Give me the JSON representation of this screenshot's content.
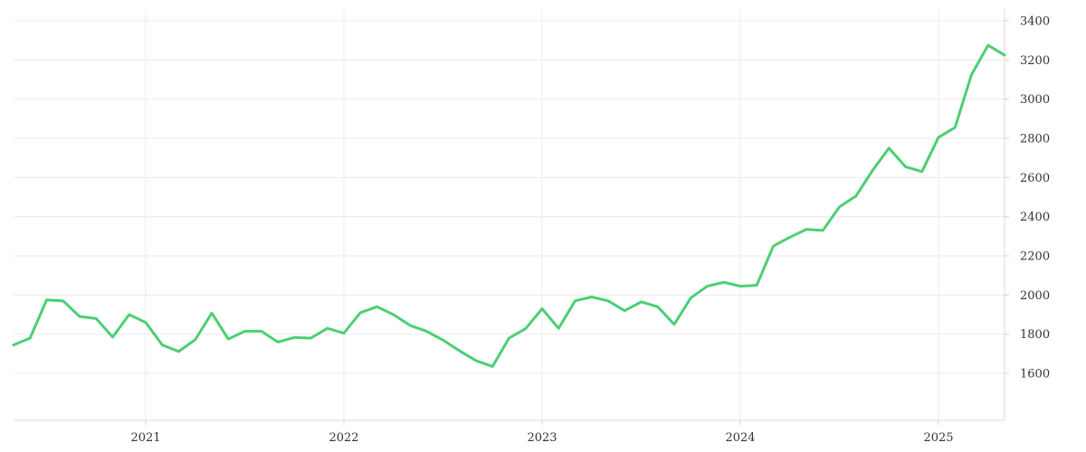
{
  "chart_data": {
    "type": "line",
    "title": "",
    "xlabel": "",
    "ylabel": "",
    "y_axis_position": "right",
    "grid": true,
    "legend": "none",
    "colors": {
      "line": "#4ccf74",
      "grid": "#ebebeb",
      "axis": "#d8d8d8",
      "text": "#333333"
    },
    "xlim": [
      "2020-05",
      "2025-05"
    ],
    "ylim": [
      1360,
      3460
    ],
    "x_ticks": [
      "2021",
      "2022",
      "2023",
      "2024",
      "2025"
    ],
    "y_ticks": [
      "1600",
      "1800",
      "2000",
      "2200",
      "2400",
      "2600",
      "2800",
      "3000",
      "3200",
      "3400"
    ],
    "series": [
      {
        "x": [
          "2020-05",
          "2020-06",
          "2020-07",
          "2020-08",
          "2020-09",
          "2020-10",
          "2020-11",
          "2020-12",
          "2021-01",
          "2021-02",
          "2021-03",
          "2021-04",
          "2021-05",
          "2021-06",
          "2021-07",
          "2021-08",
          "2021-09",
          "2021-10",
          "2021-11",
          "2021-12",
          "2022-01",
          "2022-02",
          "2022-03",
          "2022-04",
          "2022-05",
          "2022-06",
          "2022-07",
          "2022-08",
          "2022-09",
          "2022-10",
          "2022-11",
          "2022-12",
          "2023-01",
          "2023-02",
          "2023-03",
          "2023-04",
          "2023-05",
          "2023-06",
          "2023-07",
          "2023-08",
          "2023-09",
          "2023-10",
          "2023-11",
          "2023-12",
          "2024-01",
          "2024-02",
          "2024-03",
          "2024-04",
          "2024-05",
          "2024-06",
          "2024-07",
          "2024-08",
          "2024-09",
          "2024-10",
          "2024-11",
          "2024-12",
          "2025-01",
          "2025-02",
          "2025-03",
          "2025-04",
          "2025-05"
        ],
        "values": [
          1745,
          1780,
          1975,
          1970,
          1890,
          1880,
          1785,
          1900,
          1860,
          1745,
          1712,
          1772,
          1908,
          1775,
          1815,
          1815,
          1760,
          1783,
          1780,
          1830,
          1805,
          1910,
          1940,
          1900,
          1845,
          1815,
          1770,
          1715,
          1665,
          1635,
          1780,
          1828,
          1930,
          1830,
          1970,
          1990,
          1970,
          1920,
          1965,
          1940,
          1850,
          1985,
          2045,
          2065,
          2045,
          2050,
          2250,
          2295,
          2335,
          2330,
          2450,
          2505,
          2635,
          2750,
          2655,
          2630,
          2805,
          2855,
          3125,
          3275,
          3225
        ]
      }
    ]
  }
}
